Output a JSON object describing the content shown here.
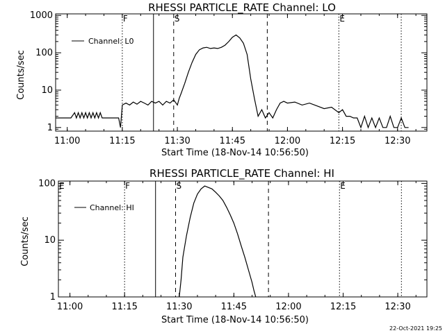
{
  "footer": {
    "date_stamp": "22-Oct-2021 19:25"
  },
  "chart_data": [
    {
      "type": "line",
      "title": "RHESSI PARTICLE_RATE Channel: LO",
      "xlabel": "Start Time (18-Nov-14 10:56:50)",
      "ylabel": "Counts/sec",
      "yscale": "log",
      "ylim": [
        0.8,
        1100
      ],
      "xlim": [
        "10:56:50",
        "12:38:00"
      ],
      "x_ticks": [
        "11:00",
        "11:15",
        "11:30",
        "11:45",
        "12:00",
        "12:15",
        "12:30"
      ],
      "y_ticks": [
        "1",
        "10",
        "100",
        "1000"
      ],
      "legend": {
        "position": "top-left",
        "entries": [
          "Channel: L0"
        ]
      },
      "markers": [
        {
          "label": "F",
          "time": "11:15",
          "style": "dotted"
        },
        {
          "label": "",
          "time": "11:23:30",
          "style": "solid"
        },
        {
          "label": "S",
          "time": "11:29",
          "style": "dashed"
        },
        {
          "label": "",
          "time": "11:54:30",
          "style": "dashed"
        },
        {
          "label": "E",
          "time": "12:14",
          "style": "dotted"
        },
        {
          "label": "",
          "time": "12:31",
          "style": "dotted"
        }
      ],
      "series": [
        {
          "name": "Channel: L0",
          "x": [
            "10:56:50",
            "11:01",
            "11:02",
            "11:02:30",
            "11:03",
            "11:03:30",
            "11:04",
            "11:04:30",
            "11:05",
            "11:05:30",
            "11:06",
            "11:06:30",
            "11:07",
            "11:07:30",
            "11:08",
            "11:08:30",
            "11:09",
            "11:09:30",
            "11:10",
            "11:14",
            "11:14:30",
            "11:15",
            "11:16",
            "11:17",
            "11:18",
            "11:19",
            "11:20",
            "11:21",
            "11:22",
            "11:23",
            "11:24",
            "11:25",
            "11:26",
            "11:27",
            "11:28",
            "11:29",
            "11:30",
            "11:30:30",
            "11:31",
            "11:32",
            "11:33",
            "11:34",
            "11:35",
            "11:36",
            "11:37",
            "11:38",
            "11:39",
            "11:40",
            "11:41",
            "11:42",
            "11:43",
            "11:44",
            "11:45",
            "11:46",
            "11:47",
            "11:48",
            "11:49",
            "11:50",
            "11:51",
            "11:52",
            "11:53",
            "11:54",
            "11:55",
            "11:56",
            "11:57",
            "11:58",
            "11:59",
            "12:00",
            "12:02",
            "12:04",
            "12:06",
            "12:08",
            "12:10",
            "12:12",
            "12:14",
            "12:15",
            "12:16",
            "12:17",
            "12:18",
            "12:19",
            "12:20",
            "12:21",
            "12:22",
            "12:23",
            "12:24",
            "12:25",
            "12:26",
            "12:27",
            "12:28",
            "12:29",
            "12:30",
            "12:31",
            "12:32",
            "12:33"
          ],
          "y": [
            1.8,
            1.8,
            2.5,
            1.8,
            2.5,
            1.8,
            2.5,
            1.8,
            2.5,
            1.8,
            2.5,
            1.8,
            2.5,
            1.8,
            2.5,
            1.8,
            2.5,
            1.8,
            1.8,
            1.8,
            1.0,
            4.0,
            4.5,
            4.0,
            4.8,
            4.2,
            5.0,
            4.5,
            4.0,
            5.0,
            4.5,
            5.0,
            4.0,
            5.0,
            4.5,
            5.5,
            4.0,
            6.0,
            8.0,
            15.0,
            30.0,
            55.0,
            90.0,
            120.0,
            135.0,
            140.0,
            130.0,
            135.0,
            130.0,
            140.0,
            160.0,
            200.0,
            260.0,
            300.0,
            250.0,
            180.0,
            90.0,
            20.0,
            6.0,
            2.0,
            3.0,
            1.8,
            2.5,
            1.8,
            3.0,
            4.5,
            5.0,
            4.5,
            4.8,
            4.0,
            4.5,
            3.8,
            3.2,
            3.5,
            2.5,
            3.0,
            2.0,
            2.0,
            1.8,
            1.8,
            1.0,
            2.0,
            1.0,
            1.8,
            1.0,
            1.8,
            1.0,
            1.0,
            2.0,
            1.0,
            1.0,
            1.8,
            1.0,
            1.0
          ]
        }
      ]
    },
    {
      "type": "line",
      "title": "RHESSI PARTICLE_RATE Channel: HI",
      "xlabel": "Start Time (18-Nov-14 10:56:50)",
      "ylabel": "Counts/sec",
      "yscale": "log",
      "ylim": [
        1,
        110
      ],
      "xlim": [
        "10:56:50",
        "12:38:00"
      ],
      "x_ticks": [
        "11:00",
        "11:15",
        "11:30",
        "11:45",
        "12:00",
        "12:15",
        "12:30"
      ],
      "y_ticks": [
        "1",
        "10",
        "100"
      ],
      "legend": {
        "position": "top-left",
        "entries": [
          "Channel: HI"
        ]
      },
      "markers": [
        {
          "label": "E",
          "time": "10:56:50",
          "style": "none"
        },
        {
          "label": "F",
          "time": "11:15",
          "style": "dotted"
        },
        {
          "label": "",
          "time": "11:23:30",
          "style": "solid"
        },
        {
          "label": "S",
          "time": "11:29",
          "style": "dashed"
        },
        {
          "label": "",
          "time": "11:54:30",
          "style": "dashed"
        },
        {
          "label": "E",
          "time": "12:14",
          "style": "dotted"
        },
        {
          "label": "",
          "time": "12:31",
          "style": "dotted"
        }
      ],
      "series": [
        {
          "name": "Channel: HI",
          "x": [
            "11:30",
            "11:30:30",
            "11:31",
            "11:32",
            "11:33",
            "11:34",
            "11:35",
            "11:36",
            "11:37",
            "11:38",
            "11:39",
            "11:40",
            "11:41",
            "11:42",
            "11:43",
            "11:44",
            "11:45",
            "11:46",
            "11:47",
            "11:48",
            "11:49",
            "11:50",
            "11:50:30",
            "11:51"
          ],
          "y": [
            1.0,
            2.0,
            5.0,
            12.0,
            25.0,
            45.0,
            65.0,
            80.0,
            90.0,
            85.0,
            80.0,
            70.0,
            60.0,
            50.0,
            38.0,
            28.0,
            20.0,
            13.0,
            8.0,
            5.0,
            3.0,
            1.8,
            1.3,
            1.0
          ]
        }
      ]
    }
  ]
}
